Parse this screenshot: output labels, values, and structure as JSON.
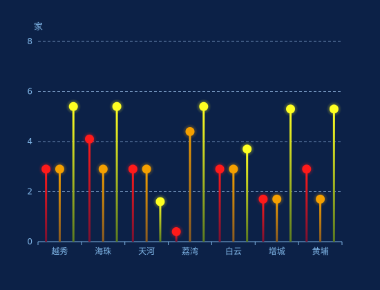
{
  "chart_data": {
    "type": "bar",
    "ylabel": "家",
    "ylim": [
      0,
      8
    ],
    "yticks": [
      0,
      2,
      4,
      6,
      8
    ],
    "grid": true,
    "categories": [
      "越秀",
      "海珠",
      "天河",
      "荔湾",
      "白云",
      "增城",
      "黄埔"
    ],
    "series": [
      {
        "values": [
          2.9,
          4.1,
          2.9,
          0.4,
          2.9,
          1.7,
          2.9
        ]
      },
      {
        "values": [
          2.9,
          2.9,
          2.9,
          4.4,
          2.9,
          1.7,
          1.7
        ]
      },
      {
        "values": [
          5.4,
          5.4,
          1.6,
          5.4,
          3.7,
          5.3,
          5.3
        ]
      }
    ],
    "colors": {
      "series_top": [
        "#ff1a1a",
        "#f5a000",
        "#ffff22"
      ],
      "series_bottom": [
        "#7a1030",
        "#8a5a20",
        "#5a7a20"
      ],
      "axis": "#7fb5e6",
      "grid": "#6f8fb8",
      "background": "#0c2147"
    }
  }
}
